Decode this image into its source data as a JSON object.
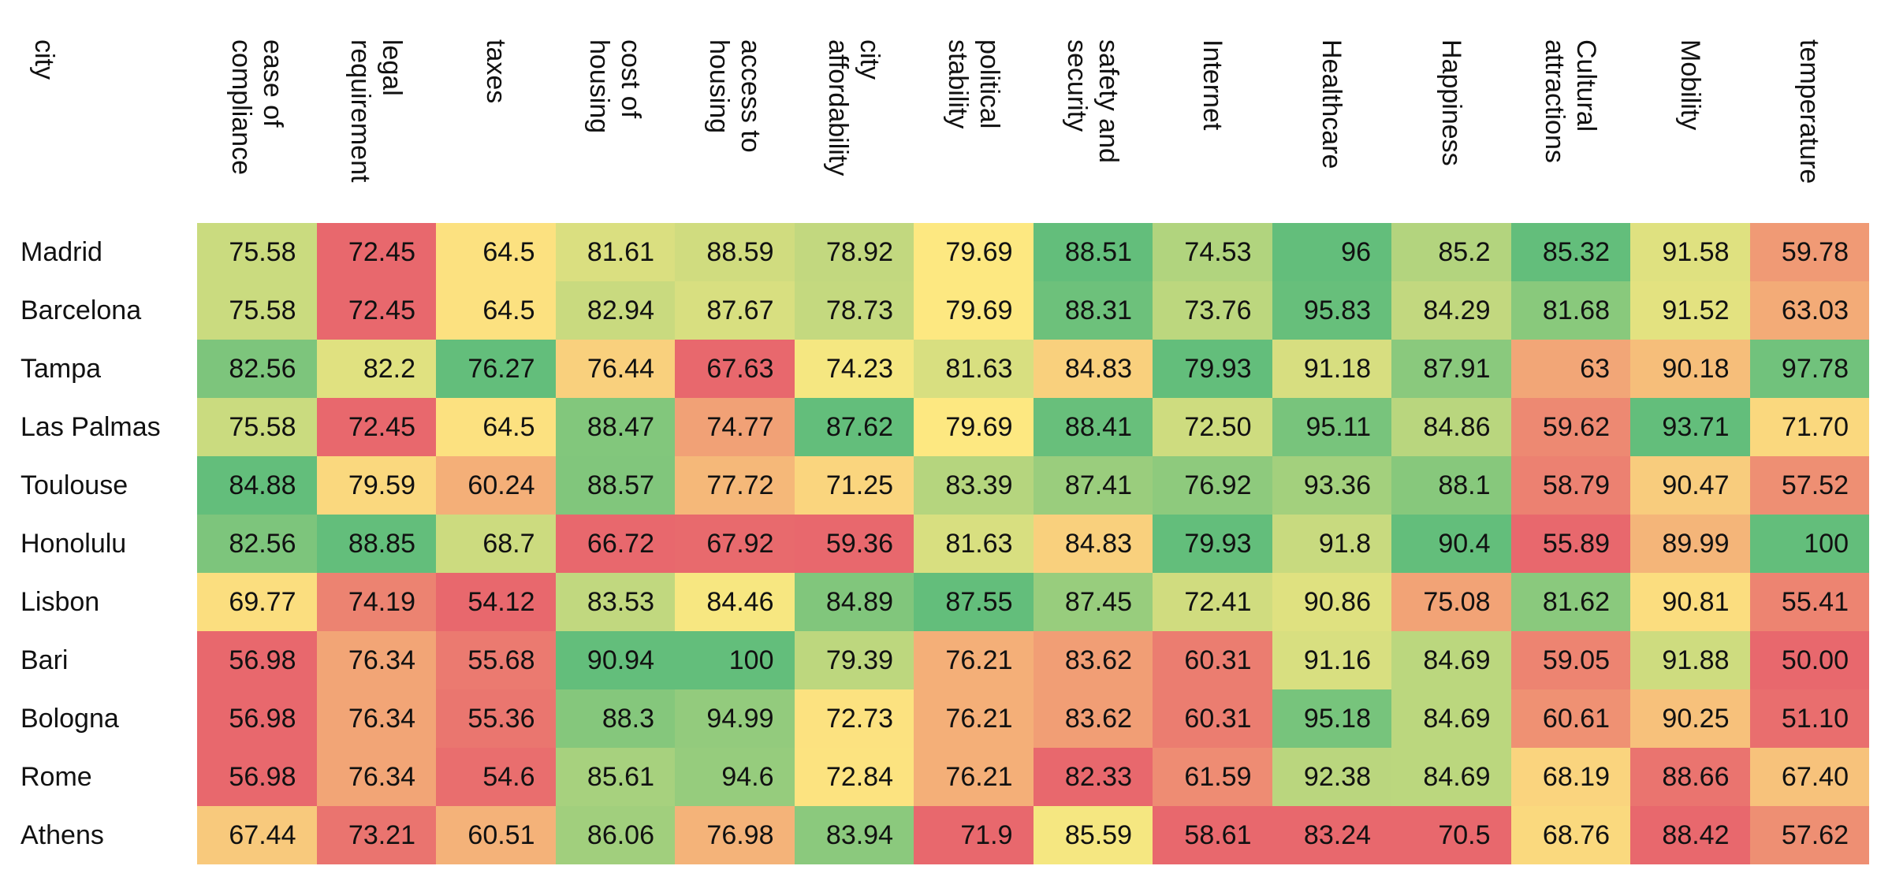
{
  "chart_data": {
    "type": "heatmap",
    "corner_label": "city",
    "columns": [
      "ease of\ncompliance",
      "legal\nrequirement",
      "taxes",
      "cost of\nhousing",
      "access to\nhousing",
      "city\naffordability",
      "political\nstability",
      "safety and\nsecurity",
      "Internet",
      "Healthcare",
      "Happiness",
      "Cultural\nattractions",
      "Mobility",
      "temperature"
    ],
    "rows": [
      {
        "city": "Madrid",
        "values": [
          "75.58",
          "72.45",
          "64.5",
          "81.61",
          "88.59",
          "78.92",
          "79.69",
          "88.51",
          "74.53",
          "96",
          "85.2",
          "85.32",
          "91.58",
          "59.78"
        ]
      },
      {
        "city": "Barcelona",
        "values": [
          "75.58",
          "72.45",
          "64.5",
          "82.94",
          "87.67",
          "78.73",
          "79.69",
          "88.31",
          "73.76",
          "95.83",
          "84.29",
          "81.68",
          "91.52",
          "63.03"
        ]
      },
      {
        "city": "Tampa",
        "values": [
          "82.56",
          "82.2",
          "76.27",
          "76.44",
          "67.63",
          "74.23",
          "81.63",
          "84.83",
          "79.93",
          "91.18",
          "87.91",
          "63",
          "90.18",
          "97.78"
        ]
      },
      {
        "city": "Las Palmas",
        "values": [
          "75.58",
          "72.45",
          "64.5",
          "88.47",
          "74.77",
          "87.62",
          "79.69",
          "88.41",
          "72.50",
          "95.11",
          "84.86",
          "59.62",
          "93.71",
          "71.70"
        ]
      },
      {
        "city": "Toulouse",
        "values": [
          "84.88",
          "79.59",
          "60.24",
          "88.57",
          "77.72",
          "71.25",
          "83.39",
          "87.41",
          "76.92",
          "93.36",
          "88.1",
          "58.79",
          "90.47",
          "57.52"
        ]
      },
      {
        "city": "Honolulu",
        "values": [
          "82.56",
          "88.85",
          "68.7",
          "66.72",
          "67.92",
          "59.36",
          "81.63",
          "84.83",
          "79.93",
          "91.8",
          "90.4",
          "55.89",
          "89.99",
          "100"
        ]
      },
      {
        "city": "Lisbon",
        "values": [
          "69.77",
          "74.19",
          "54.12",
          "83.53",
          "84.46",
          "84.89",
          "87.55",
          "87.45",
          "72.41",
          "90.86",
          "75.08",
          "81.62",
          "90.81",
          "55.41"
        ]
      },
      {
        "city": "Bari",
        "values": [
          "56.98",
          "76.34",
          "55.68",
          "90.94",
          "100",
          "79.39",
          "76.21",
          "83.62",
          "60.31",
          "91.16",
          "84.69",
          "59.05",
          "91.88",
          "50.00"
        ]
      },
      {
        "city": "Bologna",
        "values": [
          "56.98",
          "76.34",
          "55.36",
          "88.3",
          "94.99",
          "72.73",
          "76.21",
          "83.62",
          "60.31",
          "95.18",
          "84.69",
          "60.61",
          "90.25",
          "51.10"
        ]
      },
      {
        "city": "Rome",
        "values": [
          "56.98",
          "76.34",
          "54.6",
          "85.61",
          "94.6",
          "72.84",
          "76.21",
          "82.33",
          "61.59",
          "92.38",
          "84.69",
          "68.19",
          "88.66",
          "67.40"
        ]
      },
      {
        "city": "Athens",
        "values": [
          "67.44",
          "73.21",
          "60.51",
          "86.06",
          "76.98",
          "83.94",
          "71.9",
          "85.59",
          "58.61",
          "83.24",
          "70.5",
          "68.76",
          "88.42",
          "57.62"
        ]
      }
    ],
    "color_scale": {
      "low": "#e8686d",
      "mid": "#fde981",
      "high": "#63be7b"
    }
  }
}
